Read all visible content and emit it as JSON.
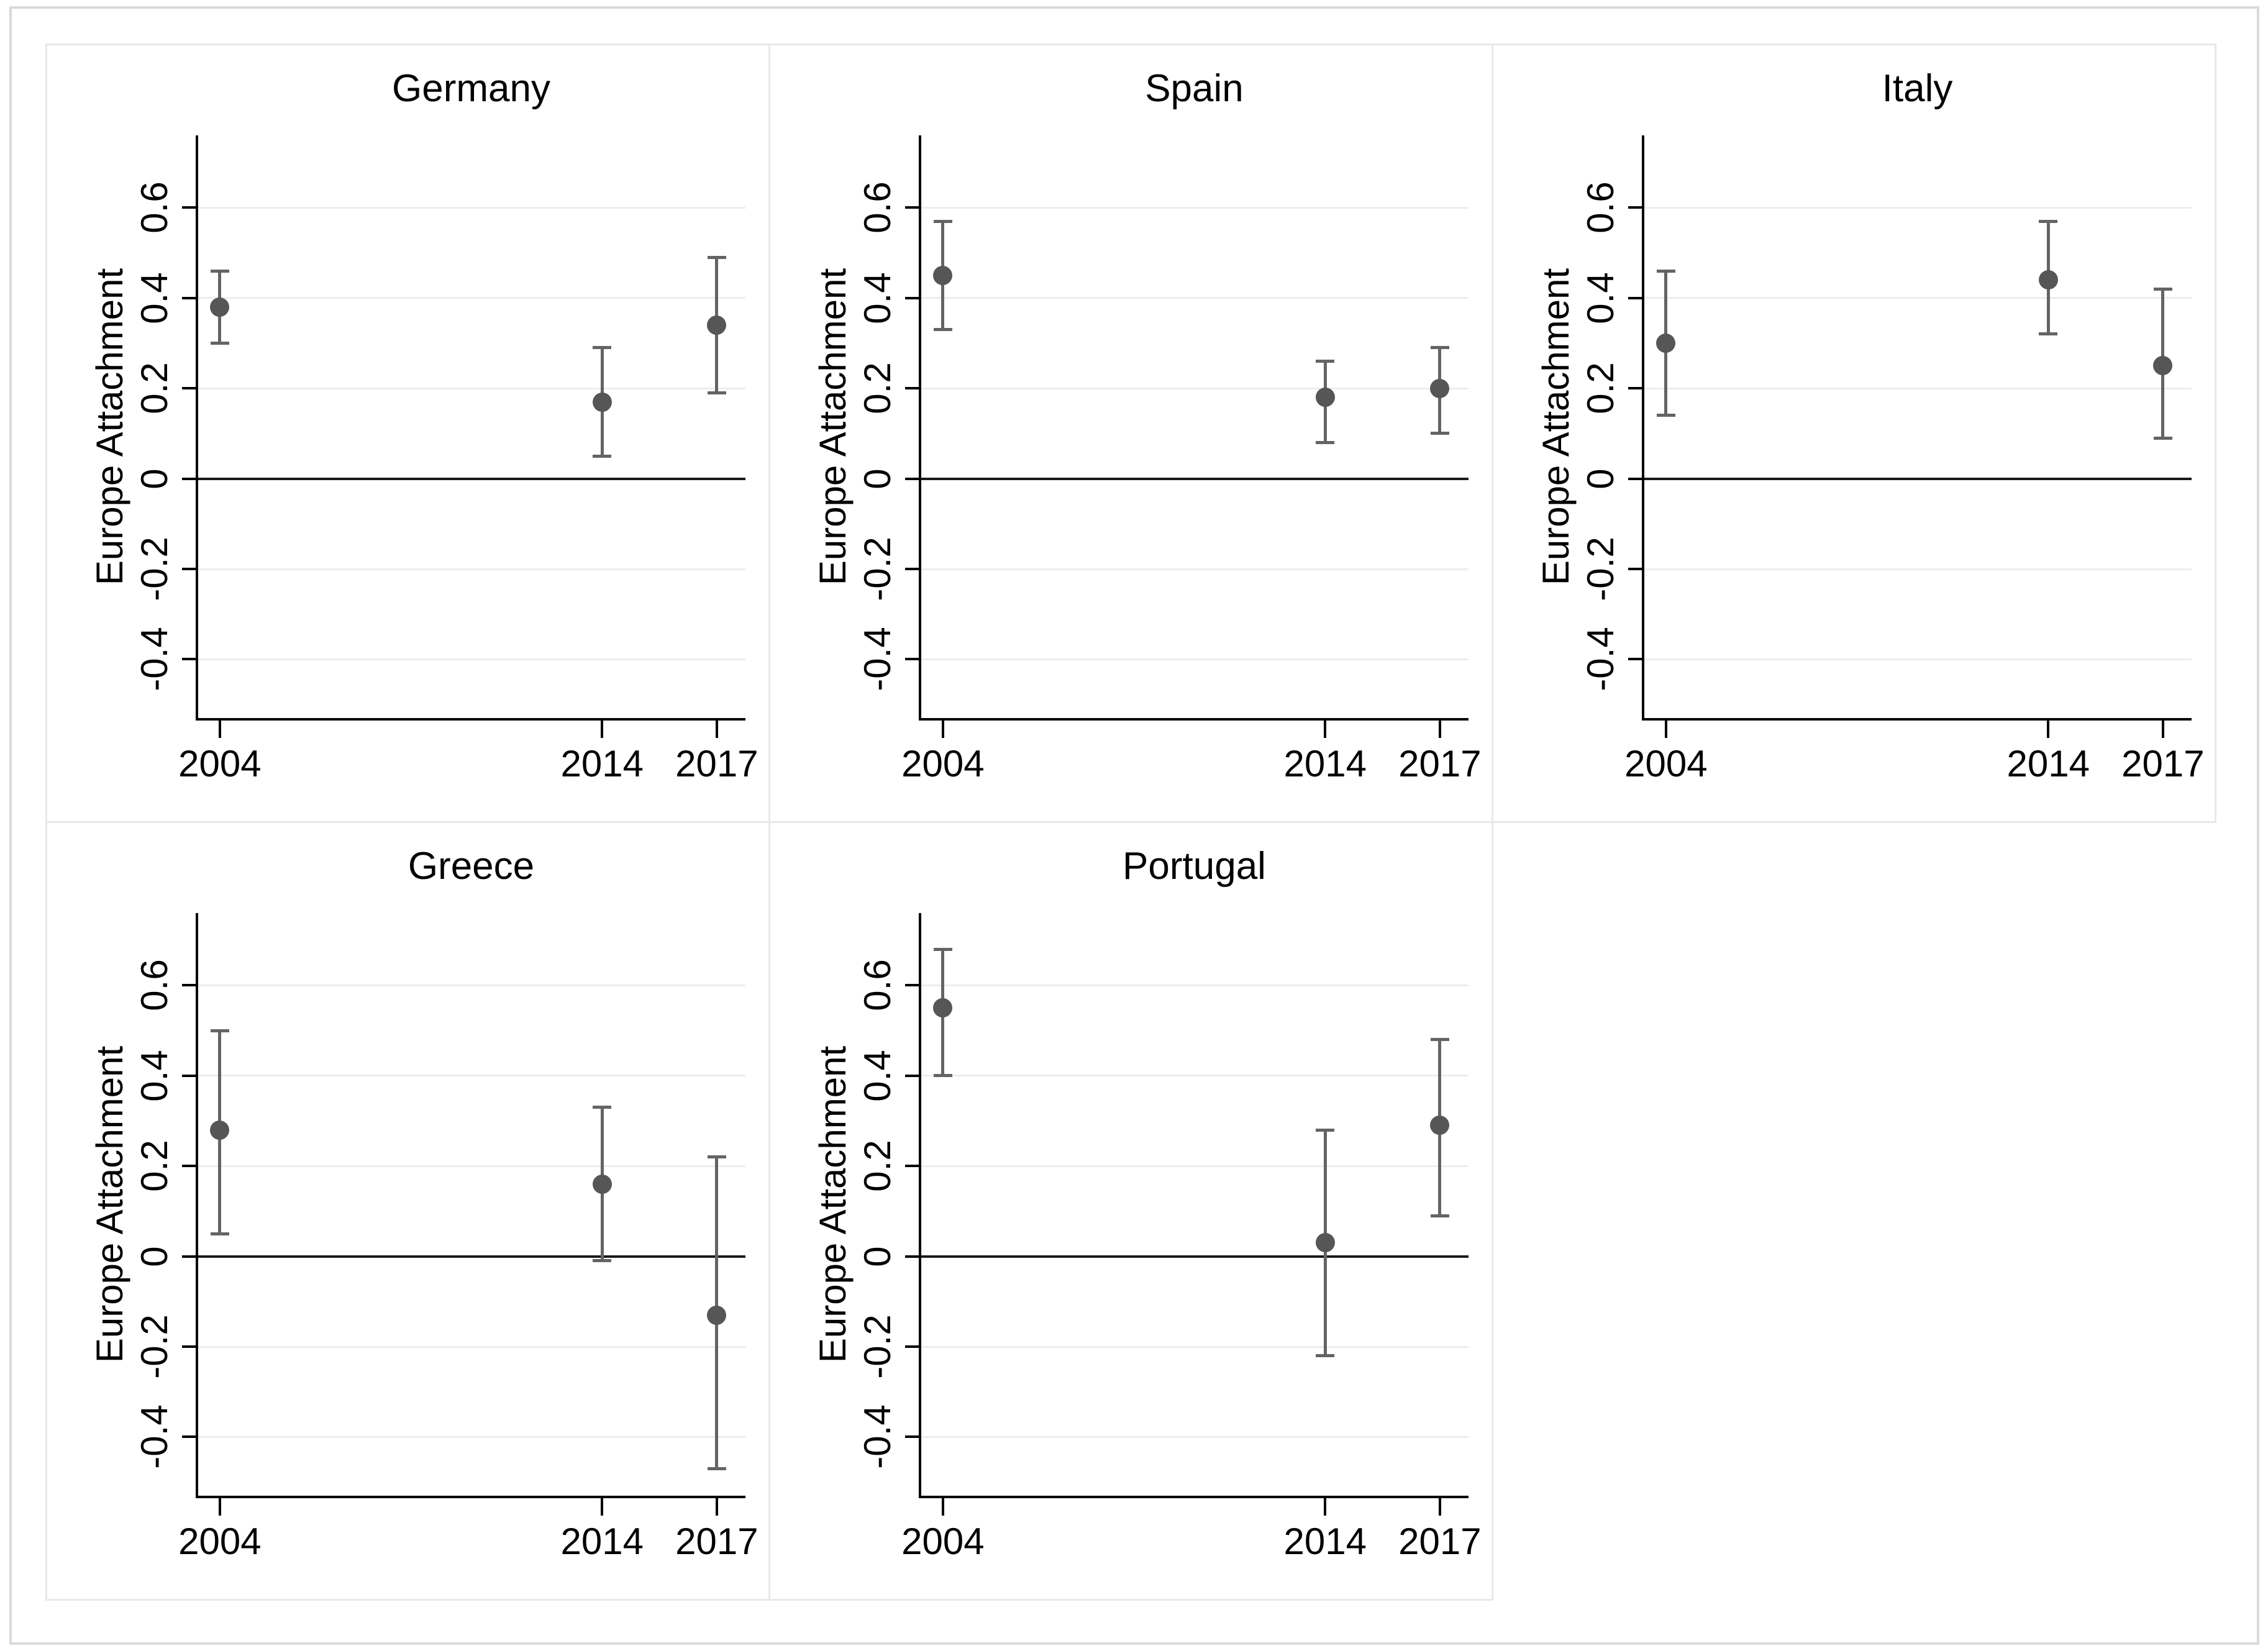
{
  "figure": {
    "kind": "coefficient-plot-grid",
    "rows": 2,
    "cols": 3,
    "shared_ylabel": "Europe Attachment"
  },
  "style": {
    "background": "#ffffff",
    "outer_border_color": "#dadada",
    "panel_border_color": "#e8e8e8",
    "grid_color": "#ededed",
    "zero_line_color": "#1a1a1a",
    "axis_color": "#000000",
    "text_color": "#000000",
    "marker_color": "#565656",
    "error_bar_color": "#646464"
  },
  "chart_data": [
    {
      "type": "scatter",
      "title": "Germany",
      "xlabel": "",
      "ylabel": "Europe Attachment",
      "x": [
        2004,
        2014,
        2017
      ],
      "xtick_labels": [
        "2004",
        "2014",
        "2017"
      ],
      "yticks": [
        0.6,
        0.4,
        0.2,
        0,
        -0.2,
        -0.4
      ],
      "ytick_labels": [
        "0.6",
        "0.4",
        "0.2",
        "0",
        "-0.2",
        "-0.4"
      ],
      "ylim": [
        -0.53,
        0.76
      ],
      "xlim": [
        2003.4,
        2017.75
      ],
      "grid": true,
      "zero_line": true,
      "legend": "none",
      "points": [
        {
          "x": 2004,
          "estimate": 0.38,
          "ci_low": 0.3,
          "ci_high": 0.46
        },
        {
          "x": 2014,
          "estimate": 0.17,
          "ci_low": 0.05,
          "ci_high": 0.29
        },
        {
          "x": 2017,
          "estimate": 0.34,
          "ci_low": 0.19,
          "ci_high": 0.49
        }
      ]
    },
    {
      "type": "scatter",
      "title": "Spain",
      "xlabel": "",
      "ylabel": "Europe Attachment",
      "x": [
        2004,
        2014,
        2017
      ],
      "xtick_labels": [
        "2004",
        "2014",
        "2017"
      ],
      "yticks": [
        0.6,
        0.4,
        0.2,
        0,
        -0.2,
        -0.4
      ],
      "ytick_labels": [
        "0.6",
        "0.4",
        "0.2",
        "0",
        "-0.2",
        "-0.4"
      ],
      "ylim": [
        -0.53,
        0.76
      ],
      "xlim": [
        2003.4,
        2017.75
      ],
      "grid": true,
      "zero_line": true,
      "legend": "none",
      "points": [
        {
          "x": 2004,
          "estimate": 0.45,
          "ci_low": 0.33,
          "ci_high": 0.57
        },
        {
          "x": 2014,
          "estimate": 0.18,
          "ci_low": 0.08,
          "ci_high": 0.26
        },
        {
          "x": 2017,
          "estimate": 0.2,
          "ci_low": 0.1,
          "ci_high": 0.29
        }
      ]
    },
    {
      "type": "scatter",
      "title": "Italy",
      "xlabel": "",
      "ylabel": "Europe Attachment",
      "x": [
        2004,
        2014,
        2017
      ],
      "xtick_labels": [
        "2004",
        "2014",
        "2017"
      ],
      "yticks": [
        0.6,
        0.4,
        0.2,
        0,
        -0.2,
        -0.4
      ],
      "ytick_labels": [
        "0.6",
        "0.4",
        "0.2",
        "0",
        "-0.2",
        "-0.4"
      ],
      "ylim": [
        -0.53,
        0.76
      ],
      "xlim": [
        2003.4,
        2017.75
      ],
      "grid": true,
      "zero_line": true,
      "legend": "none",
      "points": [
        {
          "x": 2004,
          "estimate": 0.3,
          "ci_low": 0.14,
          "ci_high": 0.46
        },
        {
          "x": 2014,
          "estimate": 0.44,
          "ci_low": 0.32,
          "ci_high": 0.57
        },
        {
          "x": 2017,
          "estimate": 0.25,
          "ci_low": 0.09,
          "ci_high": 0.42
        }
      ]
    },
    {
      "type": "scatter",
      "title": "Greece",
      "xlabel": "",
      "ylabel": "Europe Attachment",
      "x": [
        2004,
        2014,
        2017
      ],
      "xtick_labels": [
        "2004",
        "2014",
        "2017"
      ],
      "yticks": [
        0.6,
        0.4,
        0.2,
        0,
        -0.2,
        -0.4
      ],
      "ytick_labels": [
        "0.6",
        "0.4",
        "0.2",
        "0",
        "-0.2",
        "-0.4"
      ],
      "ylim": [
        -0.53,
        0.76
      ],
      "xlim": [
        2003.4,
        2017.75
      ],
      "grid": true,
      "zero_line": true,
      "legend": "none",
      "points": [
        {
          "x": 2004,
          "estimate": 0.28,
          "ci_low": 0.05,
          "ci_high": 0.5
        },
        {
          "x": 2014,
          "estimate": 0.16,
          "ci_low": -0.01,
          "ci_high": 0.33
        },
        {
          "x": 2017,
          "estimate": -0.13,
          "ci_low": -0.47,
          "ci_high": 0.22
        }
      ]
    },
    {
      "type": "scatter",
      "title": "Portugal",
      "xlabel": "",
      "ylabel": "Europe Attachment",
      "x": [
        2004,
        2014,
        2017
      ],
      "xtick_labels": [
        "2004",
        "2014",
        "2017"
      ],
      "yticks": [
        0.6,
        0.4,
        0.2,
        0,
        -0.2,
        -0.4
      ],
      "ytick_labels": [
        "0.6",
        "0.4",
        "0.2",
        "0",
        "-0.2",
        "-0.4"
      ],
      "ylim": [
        -0.53,
        0.76
      ],
      "xlim": [
        2003.4,
        2017.75
      ],
      "grid": true,
      "zero_line": true,
      "legend": "none",
      "points": [
        {
          "x": 2004,
          "estimate": 0.55,
          "ci_low": 0.4,
          "ci_high": 0.68
        },
        {
          "x": 2014,
          "estimate": 0.03,
          "ci_low": -0.22,
          "ci_high": 0.28
        },
        {
          "x": 2017,
          "estimate": 0.29,
          "ci_low": 0.09,
          "ci_high": 0.48
        }
      ]
    }
  ]
}
